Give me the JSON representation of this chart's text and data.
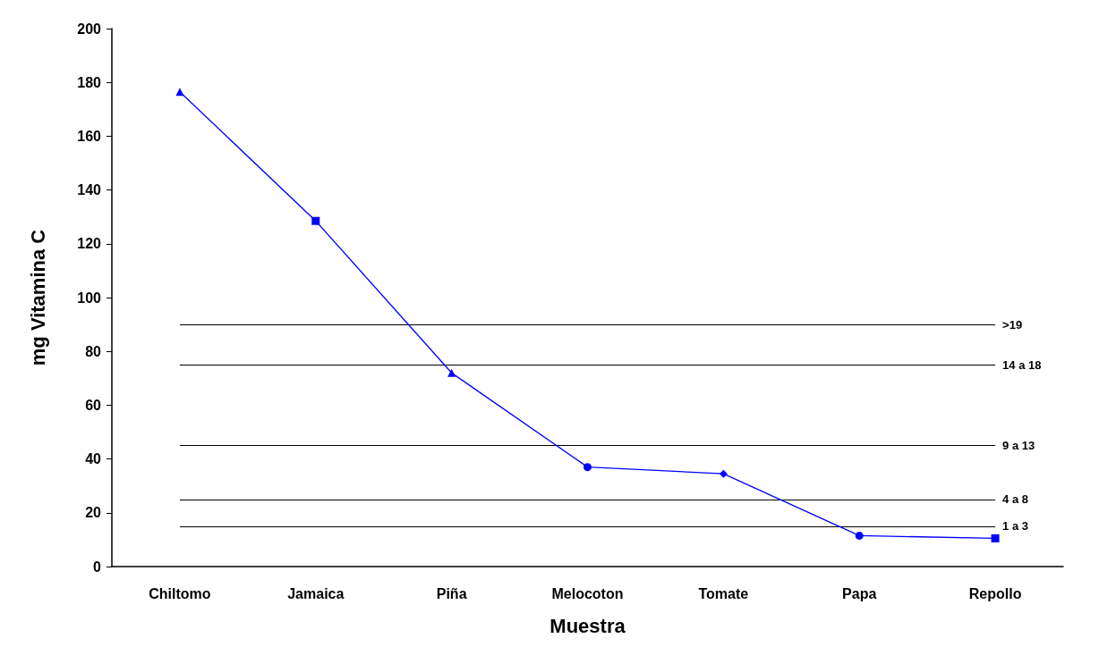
{
  "chart_data": {
    "type": "line",
    "xlabel": "Muestra",
    "ylabel": "mg Vitamina C",
    "categories": [
      "Chiltomo",
      "Jamaica",
      "Piña",
      "Melocoton",
      "Tomate",
      "Papa",
      "Repollo"
    ],
    "series": [
      {
        "color": "#0000ff",
        "values": [
          176.5,
          128.5,
          72,
          37,
          34.5,
          11.5,
          10.5
        ]
      }
    ],
    "marker": [
      "triangle",
      "square",
      "triangle",
      "circle",
      "diamond",
      "circle",
      "square"
    ],
    "line_style": "solid",
    "ylim": [
      0,
      200
    ],
    "yticks": [
      0,
      20,
      40,
      60,
      80,
      100,
      120,
      140,
      160,
      180,
      200
    ],
    "grid": false,
    "ref_lines": [
      {
        "axis": "y",
        "value": 90,
        "color": "#000000"
      },
      {
        "axis": "y",
        "value": 75,
        "color": "#000000"
      },
      {
        "axis": "y",
        "value": 45,
        "color": "#000000"
      },
      {
        "axis": "y",
        "value": 25,
        "color": "#000000"
      },
      {
        "axis": "y",
        "value": 15,
        "color": "#000000"
      }
    ],
    "annotations": [
      {
        "text": ">19",
        "x": "Repollo",
        "y": 90
      },
      {
        "text": "14 a 18",
        "x": "Repollo",
        "y": 75
      },
      {
        "text": "9 a 13",
        "x": "Repollo",
        "y": 45
      },
      {
        "text": "4 a 8",
        "x": "Repollo",
        "y": 25
      },
      {
        "text": "1 a 3",
        "x": "Repollo",
        "y": 15
      }
    ]
  }
}
